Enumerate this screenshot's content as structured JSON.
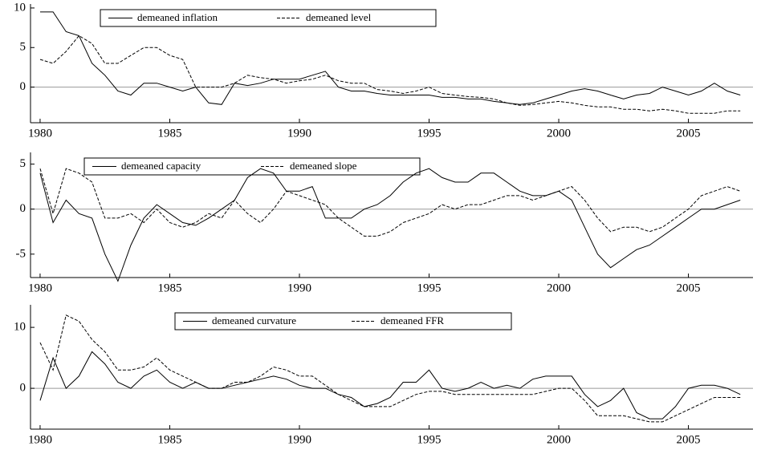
{
  "chart_data": [
    {
      "type": "line",
      "x": [
        1980,
        1980.5,
        1981,
        1981.5,
        1982,
        1982.5,
        1983,
        1983.5,
        1984,
        1984.5,
        1985,
        1985.5,
        1986,
        1986.5,
        1987,
        1987.5,
        1988,
        1988.5,
        1989,
        1989.5,
        1990,
        1990.5,
        1991,
        1991.5,
        1992,
        1992.5,
        1993,
        1993.5,
        1994,
        1994.5,
        1995,
        1995.5,
        1996,
        1996.5,
        1997,
        1997.5,
        1998,
        1998.5,
        1999,
        1999.5,
        2000,
        2000.5,
        2001,
        2001.5,
        2002,
        2002.5,
        2003,
        2003.5,
        2004,
        2004.5,
        2005,
        2005.5,
        2006,
        2006.5,
        2007
      ],
      "series": [
        {
          "name": "demeaned inflation",
          "color": "#000000",
          "dash": "solid",
          "values": [
            9.5,
            9.5,
            7,
            6.5,
            3,
            1.5,
            -0.5,
            -1,
            0.5,
            0.5,
            0,
            -0.5,
            0,
            -2,
            -2.2,
            0.5,
            0.2,
            0.5,
            1,
            1,
            1,
            1.5,
            2,
            0,
            -0.5,
            -0.5,
            -0.8,
            -1,
            -1,
            -1,
            -1,
            -1.3,
            -1.3,
            -1.5,
            -1.5,
            -1.8,
            -2,
            -2.2,
            -2,
            -1.5,
            -1,
            -0.5,
            -0.2,
            -0.5,
            -1,
            -1.5,
            -1,
            -0.8,
            0,
            -0.5,
            -1,
            -0.5,
            0.5,
            -0.5,
            -1
          ]
        },
        {
          "name": "demeaned level",
          "color": "#000000",
          "dash": "dashed",
          "values": [
            3.5,
            3,
            4.5,
            6.5,
            5.5,
            3,
            3,
            4,
            5,
            5,
            4,
            3.5,
            0,
            0,
            0,
            0.5,
            1.5,
            1.2,
            1,
            0.5,
            0.8,
            1,
            1.5,
            0.8,
            0.5,
            0.5,
            -0.3,
            -0.5,
            -0.8,
            -0.5,
            0,
            -0.8,
            -1,
            -1.2,
            -1.3,
            -1.5,
            -2,
            -2.3,
            -2.2,
            -2,
            -1.8,
            -2,
            -2.3,
            -2.5,
            -2.5,
            -2.8,
            -2.8,
            -3,
            -2.8,
            -3,
            -3.3,
            -3.3,
            -3.3,
            -3,
            -3
          ]
        }
      ],
      "xlim": [
        1979.63,
        2007.49
      ],
      "xticks": [
        1980,
        1985,
        1990,
        1995,
        2000,
        2005
      ],
      "ylim": [
        -4.5,
        10.5
      ],
      "yticks": [
        0,
        5,
        10
      ],
      "zero_line": true,
      "legend": "top-left"
    },
    {
      "type": "line",
      "x": [
        1980,
        1980.5,
        1981,
        1981.5,
        1982,
        1982.5,
        1983,
        1983.5,
        1984,
        1984.5,
        1985,
        1985.5,
        1986,
        1986.5,
        1987,
        1987.5,
        1988,
        1988.5,
        1989,
        1989.5,
        1990,
        1990.5,
        1991,
        1991.5,
        1992,
        1992.5,
        1993,
        1993.5,
        1994,
        1994.5,
        1995,
        1995.5,
        1996,
        1996.5,
        1997,
        1997.5,
        1998,
        1998.5,
        1999,
        1999.5,
        2000,
        2000.5,
        2001,
        2001.5,
        2002,
        2002.5,
        2003,
        2003.5,
        2004,
        2004.5,
        2005,
        2005.5,
        2006,
        2006.5,
        2007
      ],
      "series": [
        {
          "name": "demeaned capacity",
          "color": "#000000",
          "dash": "solid",
          "values": [
            4,
            -1.5,
            1,
            -0.5,
            -1,
            -5,
            -8,
            -4,
            -1,
            0.5,
            -0.5,
            -1.5,
            -1.8,
            -1,
            0,
            1,
            3.5,
            4.5,
            4,
            2,
            2,
            2.5,
            -1,
            -1,
            -1,
            0,
            0.5,
            1.5,
            3,
            4,
            4.5,
            3.5,
            3,
            3,
            4,
            4,
            3,
            2,
            1.5,
            1.5,
            2,
            1,
            -2,
            -5,
            -6.5,
            -5.5,
            -4.5,
            -4,
            -3,
            -2,
            -1,
            0,
            0,
            0.5,
            1
          ]
        },
        {
          "name": "demeaned slope",
          "color": "#000000",
          "dash": "dashed",
          "values": [
            4.5,
            -0.5,
            4.5,
            4,
            3,
            -1,
            -1,
            -0.5,
            -1.5,
            0,
            -1.5,
            -2,
            -1.5,
            -0.5,
            -1,
            1,
            -0.5,
            -1.5,
            0,
            2,
            1.5,
            1,
            0.5,
            -1,
            -2,
            -3,
            -3,
            -2.5,
            -1.5,
            -1,
            -0.5,
            0.5,
            0,
            0.5,
            0.5,
            1,
            1.5,
            1.5,
            1,
            1.5,
            2,
            2.5,
            1,
            -1,
            -2.5,
            -2,
            -2,
            -2.5,
            -2,
            -1,
            0,
            1.5,
            2,
            2.5,
            2
          ]
        }
      ],
      "xlim": [
        1979.63,
        2007.49
      ],
      "xticks": [
        1980,
        1985,
        1990,
        1995,
        2000,
        2005
      ],
      "ylim": [
        -7.6,
        6.3
      ],
      "yticks": [
        -5,
        0,
        5
      ],
      "zero_line": true,
      "legend": "top-left"
    },
    {
      "type": "line",
      "x": [
        1980,
        1980.5,
        1981,
        1981.5,
        1982,
        1982.5,
        1983,
        1983.5,
        1984,
        1984.5,
        1985,
        1985.5,
        1986,
        1986.5,
        1987,
        1987.5,
        1988,
        1988.5,
        1989,
        1989.5,
        1990,
        1990.5,
        1991,
        1991.5,
        1992,
        1992.5,
        1993,
        1993.5,
        1994,
        1994.5,
        1995,
        1995.5,
        1996,
        1996.5,
        1997,
        1997.5,
        1998,
        1998.5,
        1999,
        1999.5,
        2000,
        2000.5,
        2001,
        2001.5,
        2002,
        2002.5,
        2003,
        2003.5,
        2004,
        2004.5,
        2005,
        2005.5,
        2006,
        2006.5,
        2007
      ],
      "series": [
        {
          "name": "demeaned curvature",
          "color": "#000000",
          "dash": "solid",
          "values": [
            -2,
            5,
            0,
            2,
            6,
            4,
            1,
            0,
            2,
            3,
            1,
            0,
            1,
            0,
            0,
            0.5,
            1,
            1.5,
            2,
            1.5,
            0.5,
            0,
            0,
            -1,
            -1.5,
            -3,
            -2.5,
            -1.5,
            1,
            1,
            3,
            0,
            -0.5,
            0,
            1,
            0,
            0.5,
            0,
            1.5,
            2,
            2,
            2,
            -1,
            -3,
            -2,
            0,
            -4,
            -5,
            -5,
            -3,
            0,
            0.5,
            0.5,
            0,
            -1
          ]
        },
        {
          "name": "demeaned FFR",
          "color": "#000000",
          "dash": "dashed",
          "values": [
            7.5,
            3,
            12,
            11,
            8,
            6,
            3,
            3,
            3.5,
            5,
            3,
            2,
            1,
            0,
            0,
            1,
            1,
            2,
            3.5,
            3,
            2,
            2,
            0.5,
            -1,
            -2,
            -3,
            -3,
            -3,
            -2,
            -1,
            -0.5,
            -0.5,
            -1,
            -1,
            -1,
            -1,
            -1,
            -1,
            -1,
            -0.5,
            0,
            0,
            -2,
            -4.5,
            -4.5,
            -4.5,
            -5,
            -5.5,
            -5.5,
            -4.5,
            -3.5,
            -2.5,
            -1.5,
            -1.5,
            -1.5
          ]
        }
      ],
      "xlim": [
        1979.63,
        2007.49
      ],
      "xticks": [
        1980,
        1985,
        1990,
        1995,
        2000,
        2005
      ],
      "ylim": [
        -6.7,
        13.7
      ],
      "yticks": [
        0,
        10
      ],
      "zero_line": true,
      "legend": "top-left"
    }
  ]
}
